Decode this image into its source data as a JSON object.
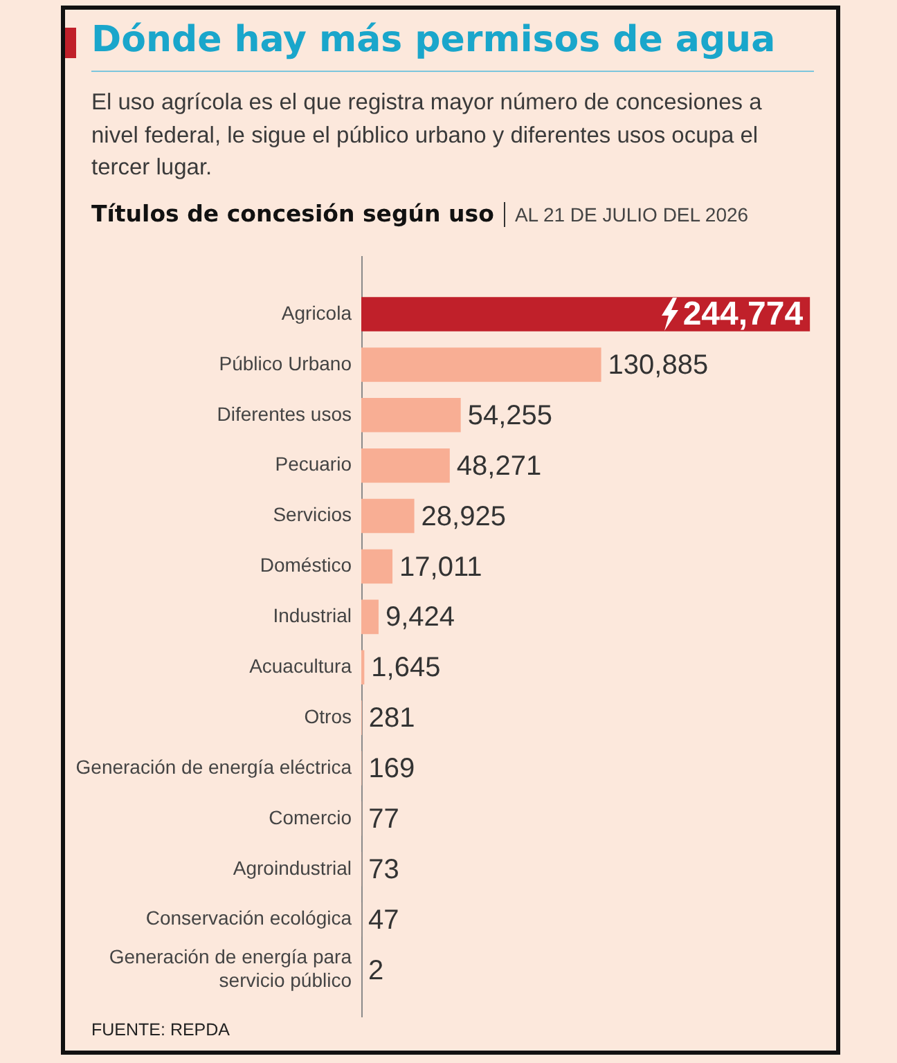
{
  "chart_data": {
    "type": "bar",
    "orientation": "horizontal",
    "title": "Dónde hay más permisos de agua",
    "subtitle": "El uso agrícola es el que registra mayor número de concesiones a nivel federal, le sigue el público urbano y diferentes usos ocupa el tercer lugar.",
    "annotations": [
      "Títulos de concesión según uso",
      "AL 21 DE JULIO DEL 2026",
      "FUENTE: REPDA"
    ],
    "categories": [
      "Agricola",
      "Público Urbano",
      "Diferentes usos",
      "Pecuario",
      "Servicios",
      "Doméstico",
      "Industrial",
      "Acuacultura",
      "Otros",
      "Generación de energía eléctrica",
      "Comercio",
      "Agroindustrial",
      "Conservación ecológica",
      "Generación de energía para servicio público"
    ],
    "values": [
      244774,
      130885,
      54255,
      48271,
      28925,
      17011,
      9424,
      1645,
      281,
      169,
      77,
      73,
      47,
      2
    ],
    "value_labels": [
      "244,774",
      "130,885",
      "54,255",
      "48,271",
      "28,925",
      "17,011",
      "9,424",
      "1,645",
      "281",
      "169",
      "77",
      "73",
      "47",
      "2"
    ],
    "colors": [
      "#c0202a",
      "#f8ae94",
      "#f8ae94",
      "#f8ae94",
      "#f8ae94",
      "#f8ae94",
      "#f8ae94",
      "#f8ae94",
      "#f8ae94",
      "#f8ae94",
      "#f8ae94",
      "#f8ae94",
      "#f8ae94",
      "#f8ae94"
    ],
    "tick_labels": "y"
  }
}
